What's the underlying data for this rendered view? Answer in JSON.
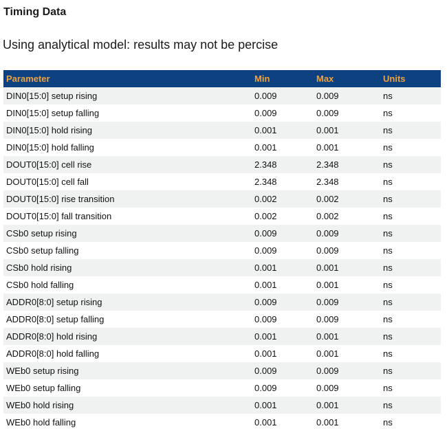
{
  "page": {
    "title": "Timing Data",
    "subtitle": "Using analytical model: results may not be percise"
  },
  "table": {
    "columns": [
      "Parameter",
      "Min",
      "Max",
      "Units"
    ],
    "rows": [
      [
        "DIN0[15:0] setup rising",
        "0.009",
        "0.009",
        "ns"
      ],
      [
        "DIN0[15:0] setup falling",
        "0.009",
        "0.009",
        "ns"
      ],
      [
        "DIN0[15:0] hold rising",
        "0.001",
        "0.001",
        "ns"
      ],
      [
        "DIN0[15:0] hold falling",
        "0.001",
        "0.001",
        "ns"
      ],
      [
        "DOUT0[15:0] cell rise",
        "2.348",
        "2.348",
        "ns"
      ],
      [
        "DOUT0[15:0] cell fall",
        "2.348",
        "2.348",
        "ns"
      ],
      [
        "DOUT0[15:0] rise transition",
        "0.002",
        "0.002",
        "ns"
      ],
      [
        "DOUT0[15:0] fall transition",
        "0.002",
        "0.002",
        "ns"
      ],
      [
        "CSb0 setup rising",
        "0.009",
        "0.009",
        "ns"
      ],
      [
        "CSb0 setup falling",
        "0.009",
        "0.009",
        "ns"
      ],
      [
        "CSb0 hold rising",
        "0.001",
        "0.001",
        "ns"
      ],
      [
        "CSb0 hold falling",
        "0.001",
        "0.001",
        "ns"
      ],
      [
        "ADDR0[8:0] setup rising",
        "0.009",
        "0.009",
        "ns"
      ],
      [
        "ADDR0[8:0] setup falling",
        "0.009",
        "0.009",
        "ns"
      ],
      [
        "ADDR0[8:0] hold rising",
        "0.001",
        "0.001",
        "ns"
      ],
      [
        "ADDR0[8:0] hold falling",
        "0.001",
        "0.001",
        "ns"
      ],
      [
        "WEb0 setup rising",
        "0.009",
        "0.009",
        "ns"
      ],
      [
        "WEb0 setup falling",
        "0.009",
        "0.009",
        "ns"
      ],
      [
        "WEb0 hold rising",
        "0.001",
        "0.001",
        "ns"
      ],
      [
        "WEb0 hold falling",
        "0.001",
        "0.001",
        "ns"
      ]
    ]
  },
  "colors": {
    "header_bg": "#0D4180",
    "header_text": "#EFA33C",
    "row_alt_bg": "#F0F2F1",
    "row_bg": "#FFFFFF",
    "row_text": "#111111"
  }
}
